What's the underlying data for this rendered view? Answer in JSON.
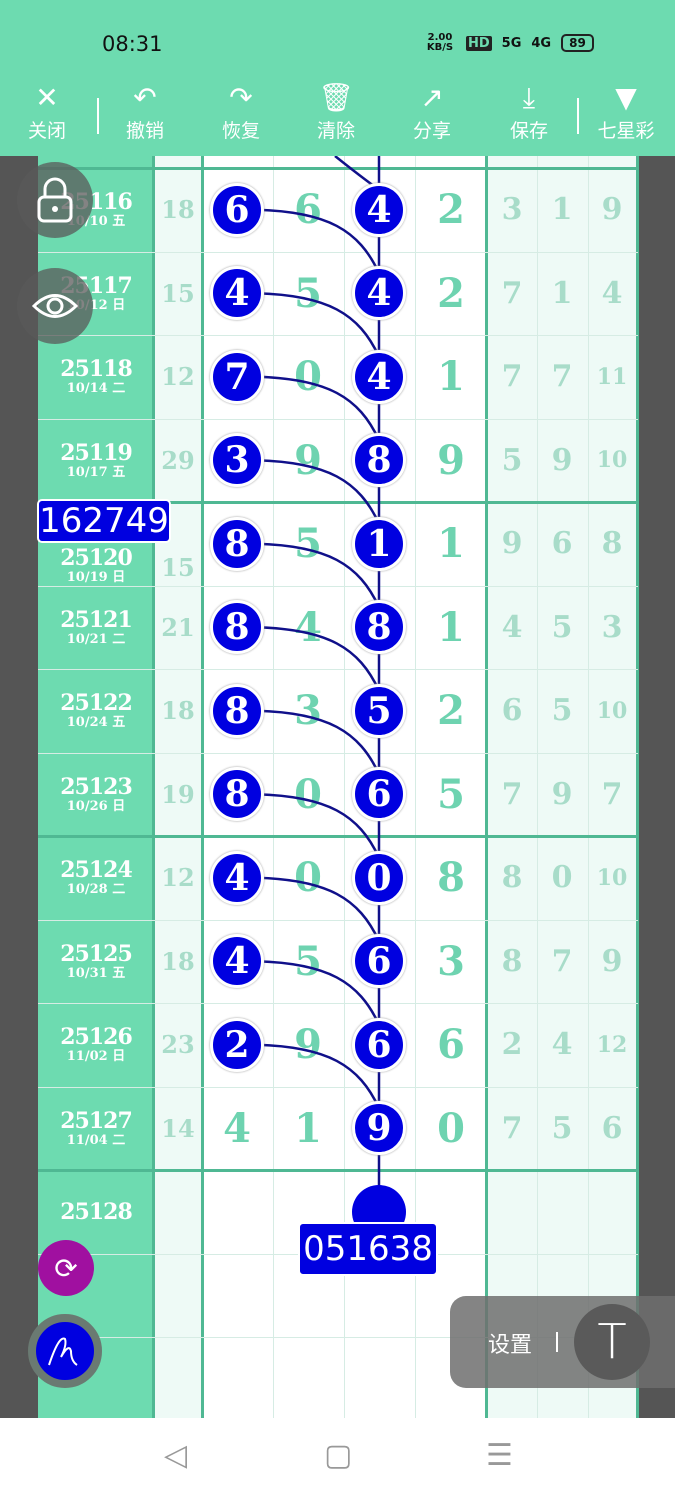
{
  "status": {
    "time": "08:31",
    "speed": "2.00 KB/S",
    "hd": "HD",
    "net1": "5G",
    "net2": "4G",
    "battery": "89"
  },
  "toolbar": [
    {
      "icon": "close-icon",
      "glyph": "✕",
      "label": "关闭"
    },
    {
      "icon": "undo-icon",
      "glyph": "↶",
      "label": "撤销"
    },
    {
      "icon": "redo-icon",
      "glyph": "↷",
      "label": "恢复"
    },
    {
      "icon": "trash-icon",
      "glyph": "🗑",
      "label": "清除"
    },
    {
      "icon": "share-icon",
      "glyph": "↗",
      "label": "分享"
    },
    {
      "icon": "download-icon",
      "glyph": "⤓",
      "label": "保存"
    },
    {
      "icon": "dropdown-triangle-icon",
      "glyph": "▼",
      "label": "七星彩"
    }
  ],
  "colors": {
    "accent": "#6ddbb0",
    "ball": "#0000e0",
    "digit": "#6ed3b0",
    "light_digit": "#a8dcc9",
    "purple": "#a010a0"
  },
  "rows": [
    {
      "id": "25116",
      "date": "10/10 五",
      "sum": "18",
      "d": [
        "6",
        "6",
        "4",
        "2"
      ],
      "r": [
        "3",
        "1",
        "9"
      ],
      "circled": [
        0,
        2
      ]
    },
    {
      "id": "25117",
      "date": "10/12 日",
      "sum": "15",
      "d": [
        "4",
        "5",
        "4",
        "2"
      ],
      "r": [
        "7",
        "1",
        "4"
      ],
      "circled": [
        0,
        2
      ]
    },
    {
      "id": "25118",
      "date": "10/14 二",
      "sum": "12",
      "d": [
        "7",
        "0",
        "4",
        "1"
      ],
      "r": [
        "7",
        "7",
        "11"
      ],
      "circled": [
        0,
        2
      ]
    },
    {
      "id": "25119",
      "date": "10/17 五",
      "sum": "29",
      "d": [
        "3",
        "9",
        "8",
        "9"
      ],
      "r": [
        "5",
        "9",
        "10"
      ],
      "circled": [
        0,
        2
      ]
    },
    {
      "id": "25120",
      "date": "10/19 日",
      "sum": "15",
      "d": [
        "8",
        "5",
        "1",
        "1"
      ],
      "r": [
        "9",
        "6",
        "8"
      ],
      "circled": [
        0,
        2
      ]
    },
    {
      "id": "25121",
      "date": "10/21 二",
      "sum": "21",
      "d": [
        "8",
        "4",
        "8",
        "1"
      ],
      "r": [
        "4",
        "5",
        "3"
      ],
      "circled": [
        0,
        2
      ]
    },
    {
      "id": "25122",
      "date": "10/24 五",
      "sum": "18",
      "d": [
        "8",
        "3",
        "5",
        "2"
      ],
      "r": [
        "6",
        "5",
        "10"
      ],
      "circled": [
        0,
        2
      ]
    },
    {
      "id": "25123",
      "date": "10/26 日",
      "sum": "19",
      "d": [
        "8",
        "0",
        "6",
        "5"
      ],
      "r": [
        "7",
        "9",
        "7"
      ],
      "circled": [
        0,
        2
      ]
    },
    {
      "id": "25124",
      "date": "10/28 二",
      "sum": "12",
      "d": [
        "4",
        "0",
        "0",
        "8"
      ],
      "r": [
        "8",
        "0",
        "10"
      ],
      "circled": [
        0,
        2
      ]
    },
    {
      "id": "25125",
      "date": "10/31 五",
      "sum": "18",
      "d": [
        "4",
        "5",
        "6",
        "3"
      ],
      "r": [
        "8",
        "7",
        "9"
      ],
      "circled": [
        0,
        2
      ]
    },
    {
      "id": "25126",
      "date": "11/02 日",
      "sum": "23",
      "d": [
        "2",
        "9",
        "6",
        "6"
      ],
      "r": [
        "2",
        "4",
        "12"
      ],
      "circled": [
        0,
        2
      ]
    },
    {
      "id": "25127",
      "date": "11/04 二",
      "sum": "14",
      "d": [
        "4",
        "1",
        "9",
        "0"
      ],
      "r": [
        "7",
        "5",
        "6"
      ],
      "circled": [
        2
      ]
    },
    {
      "id": "25128",
      "date": "",
      "sum": "",
      "d": [
        "",
        "",
        "",
        ""
      ],
      "r": [
        "",
        "",
        ""
      ],
      "circled": []
    }
  ],
  "badges": {
    "left": "162749",
    "bottom": "051638"
  },
  "floating": {
    "settings": "设置",
    "text_tool": "T"
  },
  "nav": {
    "back": "◁",
    "home": "▢",
    "menu": "☰"
  }
}
